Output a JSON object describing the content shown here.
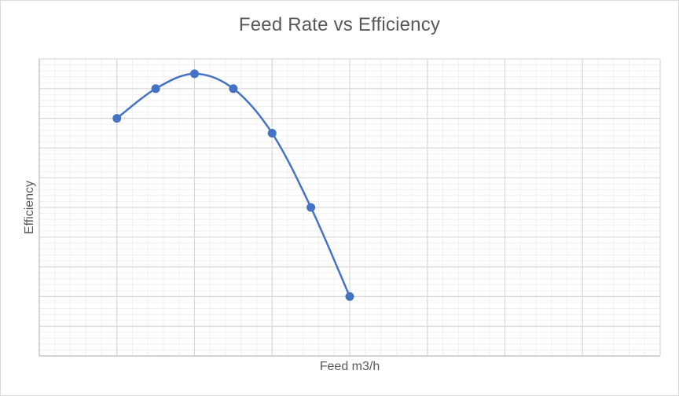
{
  "chart_data": {
    "type": "line",
    "title": "Feed Rate vs Efficiency",
    "xlabel": "Feed m3/h",
    "ylabel": "Efficiency",
    "series": [
      {
        "x": [
          1,
          1.5,
          2,
          2.5,
          3,
          3.5,
          4
        ],
        "values": [
          7.0,
          8.0,
          8.5,
          8.0,
          6.5,
          4.0,
          1.0
        ]
      }
    ],
    "xlim": [
      0,
      8
    ],
    "ylim": [
      -1,
      9
    ],
    "grid": true,
    "smooth": true,
    "markers": true,
    "tick_labels_visible": false,
    "colors": {
      "series": "#4472c4",
      "major_grid": "#d9d9d9",
      "minor_grid": "#f0f0f0",
      "text": "#595959"
    }
  }
}
